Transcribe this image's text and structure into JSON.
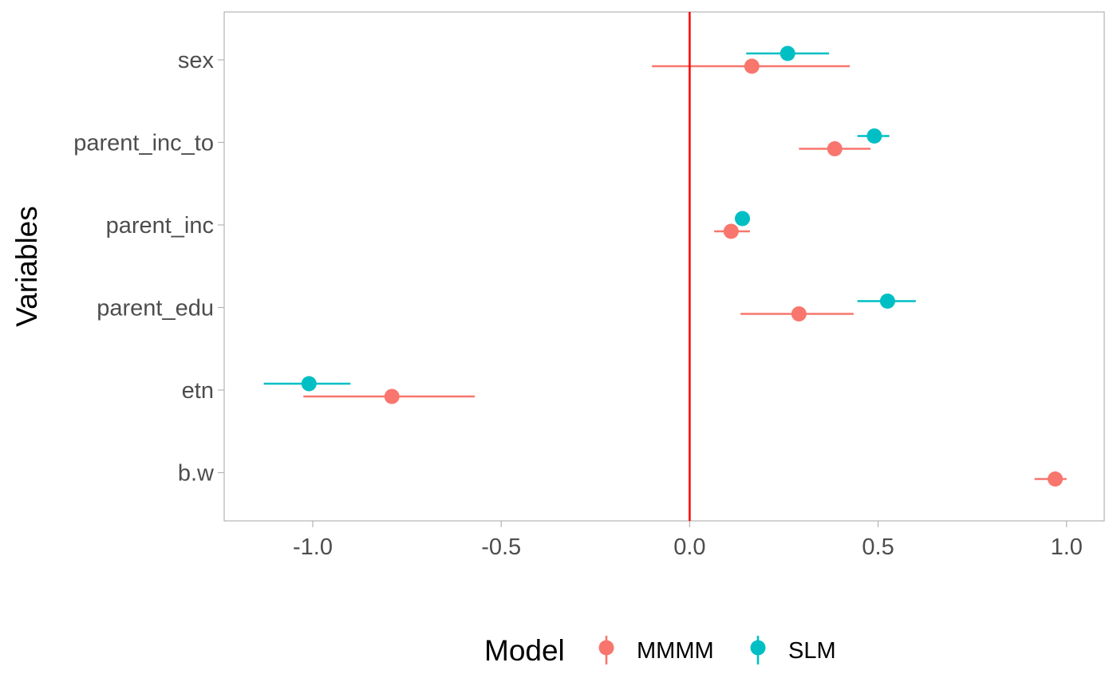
{
  "chart_data": {
    "type": "scatter",
    "subtype": "coefficient-plot-with-error-bars",
    "ylabel": "Variables",
    "xlabel": "",
    "categories": [
      "sex",
      "parent_inc_to",
      "parent_inc",
      "parent_edu",
      "etn",
      "b.w"
    ],
    "xlim": [
      -1.235,
      1.1
    ],
    "xticks": [
      -1.0,
      -0.5,
      0.0,
      0.5,
      1.0
    ],
    "xtick_labels": [
      "-1.0",
      "-0.5",
      "0.0",
      "0.5",
      "1.0"
    ],
    "reference_line": {
      "x": 0,
      "color": "#ff0000"
    },
    "grid": false,
    "legend": {
      "title": "Model",
      "position": "bottom"
    },
    "series": [
      {
        "name": "MMMM",
        "color": "#f8766d",
        "points": [
          {
            "category": "sex",
            "estimate": 0.165,
            "lower": -0.1,
            "upper": 0.425
          },
          {
            "category": "parent_inc_to",
            "estimate": 0.385,
            "lower": 0.29,
            "upper": 0.48
          },
          {
            "category": "parent_inc",
            "estimate": 0.11,
            "lower": 0.065,
            "upper": 0.16
          },
          {
            "category": "parent_edu",
            "estimate": 0.29,
            "lower": 0.135,
            "upper": 0.435
          },
          {
            "category": "etn",
            "estimate": -0.79,
            "lower": -1.025,
            "upper": -0.57
          },
          {
            "category": "b.w",
            "estimate": 0.97,
            "lower": 0.915,
            "upper": 1.0
          }
        ]
      },
      {
        "name": "SLM",
        "color": "#00bfc4",
        "points": [
          {
            "category": "sex",
            "estimate": 0.26,
            "lower": 0.15,
            "upper": 0.37
          },
          {
            "category": "parent_inc_to",
            "estimate": 0.49,
            "lower": 0.445,
            "upper": 0.53
          },
          {
            "category": "parent_inc",
            "estimate": 0.14,
            "lower": 0.12,
            "upper": 0.16
          },
          {
            "category": "parent_edu",
            "estimate": 0.525,
            "lower": 0.445,
            "upper": 0.6
          },
          {
            "category": "etn",
            "estimate": -1.01,
            "lower": -1.13,
            "upper": -0.9
          }
        ]
      }
    ]
  }
}
